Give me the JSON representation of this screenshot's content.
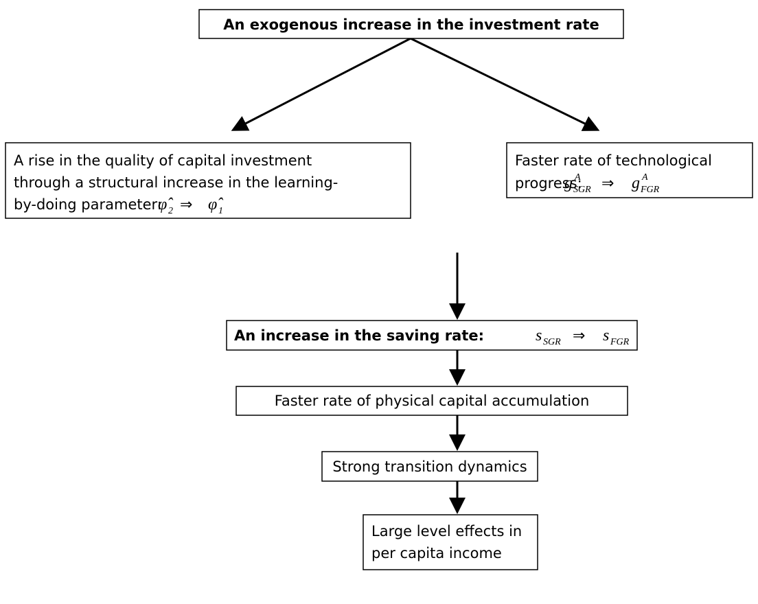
{
  "nodes": [
    {
      "lines": [
        "An exogenous increase in the investment rate"
      ]
    },
    {
      "lines": [
        "A rise in the quality of capital investment",
        "through a structural increase in the learning-",
        "by-doing parameter:"
      ],
      "math": {
        "left": {
          "symbol": "φ̂",
          "sub": "2"
        },
        "op": "⇒",
        "right": {
          "symbol": "φ̂",
          "sub": "1"
        }
      }
    },
    {
      "lines": [
        "Faster rate of technological",
        "progress:"
      ],
      "math": {
        "left": {
          "symbol": "g",
          "sup": "A",
          "sub": "SGR"
        },
        "op": "⇒",
        "right": {
          "symbol": "g",
          "sup": "A",
          "sub": "FGR"
        }
      }
    },
    {
      "lines": [
        "An increase in the saving rate:"
      ],
      "math": {
        "left": {
          "symbol": "s",
          "sub": "SGR"
        },
        "op": "⇒",
        "right": {
          "symbol": "s",
          "sub": "FGR"
        }
      }
    },
    {
      "lines": [
        "Faster rate of physical capital accumulation"
      ]
    },
    {
      "lines": [
        "Strong transition dynamics"
      ]
    },
    {
      "lines": [
        "Large level effects in",
        "per capita income"
      ]
    }
  ]
}
